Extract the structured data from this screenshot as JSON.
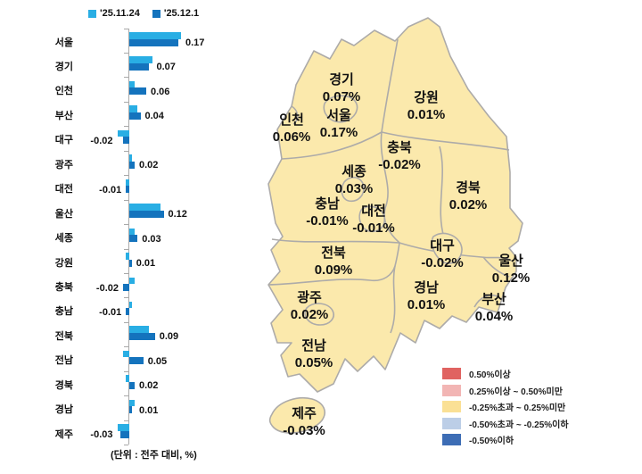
{
  "chart_data": {
    "type": "bar",
    "orientation": "horizontal",
    "title": "",
    "categories": [
      "서울",
      "경기",
      "인천",
      "부산",
      "대구",
      "광주",
      "대전",
      "울산",
      "세종",
      "강원",
      "충북",
      "충남",
      "전북",
      "전남",
      "경북",
      "경남",
      "제주"
    ],
    "series": [
      {
        "name": "'25.11.24",
        "color": "#29AEE4",
        "values": [
          0.18,
          0.08,
          0.02,
          0.03,
          -0.04,
          0.01,
          -0.01,
          0.11,
          0.02,
          -0.01,
          0.02,
          0.01,
          0.07,
          -0.02,
          -0.01,
          0.02,
          -0.04
        ]
      },
      {
        "name": "'25.12.1",
        "color": "#1473BD",
        "values": [
          0.17,
          0.07,
          0.06,
          0.04,
          -0.02,
          0.02,
          -0.01,
          0.12,
          0.03,
          0.01,
          -0.02,
          -0.01,
          0.09,
          0.05,
          0.02,
          0.01,
          -0.03
        ]
      }
    ],
    "value_labels_from_series": "'25.12.1",
    "xlim": [
      -0.06,
      0.2
    ],
    "grid": false,
    "legend_position": "top",
    "unit_note": "(단위 : 전주 대비, %)"
  },
  "map": {
    "colors": {
      "land": "#FBE9AC",
      "border": "#ADABA9"
    },
    "regions": [
      {
        "name": "경기",
        "value": "0.07%"
      },
      {
        "name": "강원",
        "value": "0.01%"
      },
      {
        "name": "인천",
        "value": "0.06%"
      },
      {
        "name": "서울",
        "value": "0.17%"
      },
      {
        "name": "충북",
        "value": "-0.02%"
      },
      {
        "name": "세종",
        "value": "0.03%"
      },
      {
        "name": "경북",
        "value": "0.02%"
      },
      {
        "name": "충남",
        "value": "-0.01%"
      },
      {
        "name": "대전",
        "value": "-0.01%"
      },
      {
        "name": "대구",
        "value": "-0.02%"
      },
      {
        "name": "울산",
        "value": "0.12%"
      },
      {
        "name": "전북",
        "value": "0.09%"
      },
      {
        "name": "경남",
        "value": "0.01%"
      },
      {
        "name": "부산",
        "value": "0.04%"
      },
      {
        "name": "광주",
        "value": "0.02%"
      },
      {
        "name": "전남",
        "value": "0.05%"
      },
      {
        "name": "제주",
        "value": "-0.03%"
      }
    ],
    "legend": [
      {
        "label": "0.50%이상",
        "color": "#E06361"
      },
      {
        "label": "0.25%이상 ~ 0.50%미만",
        "color": "#F2B5B4"
      },
      {
        "label": "-0.25%초과 ~ 0.25%미만",
        "color": "#FAE095"
      },
      {
        "label": "-0.50%초과 ~ -0.25%이하",
        "color": "#BCCEE7"
      },
      {
        "label": "-0.50%이하",
        "color": "#3D6DB5"
      }
    ]
  },
  "footer": {
    "unit_note": "(단위 : 전주 대비, %)"
  }
}
